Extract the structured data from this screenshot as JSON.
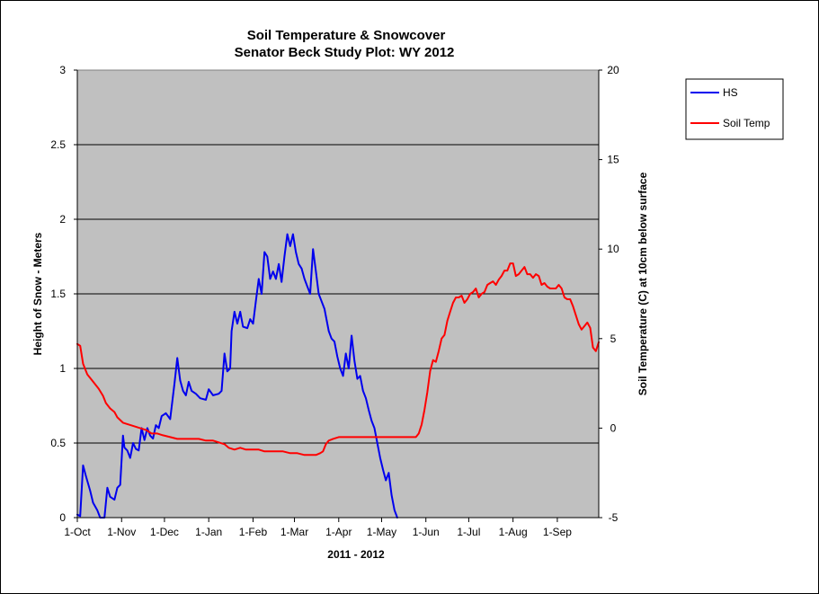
{
  "chart_data": {
    "type": "line",
    "title": "Soil Temperature & Snowcover",
    "subtitle": "Senator Beck Study Plot: WY 2012",
    "xlabel": "2011  -  2012",
    "ylabel": "Height of Snow - Meters",
    "y2label": "Soil Temperature (C) at 10cm below surface",
    "x_ticks": [
      "1-Oct",
      "1-Nov",
      "1-Dec",
      "1-Jan",
      "1-Feb",
      "1-Mar",
      "1-Apr",
      "1-May",
      "1-Jun",
      "1-Jul",
      "1-Aug",
      "1-Sep"
    ],
    "ylim": [
      0,
      3
    ],
    "y_ticks": [
      "0",
      "0.5",
      "1",
      "1.5",
      "2",
      "2.5",
      "3"
    ],
    "y2lim": [
      -5,
      20
    ],
    "y2_ticks": [
      "-5",
      "0",
      "5",
      "10",
      "15",
      "20"
    ],
    "grid": "horizontal",
    "plot_background": "#c0c0c0",
    "legend_position": "right",
    "x_start_date": "2011-10-01",
    "series": [
      {
        "name": "HS",
        "axis": "left",
        "color": "#0000ee",
        "points": [
          [
            "2011-10-01",
            0.02
          ],
          [
            "2011-10-03",
            0.01
          ],
          [
            "2011-10-05",
            0.35
          ],
          [
            "2011-10-07",
            0.28
          ],
          [
            "2011-10-10",
            0.18
          ],
          [
            "2011-10-12",
            0.1
          ],
          [
            "2011-10-15",
            0.05
          ],
          [
            "2011-10-17",
            0.0
          ],
          [
            "2011-10-20",
            0.0
          ],
          [
            "2011-10-22",
            0.2
          ],
          [
            "2011-10-24",
            0.14
          ],
          [
            "2011-10-27",
            0.12
          ],
          [
            "2011-10-29",
            0.2
          ],
          [
            "2011-10-31",
            0.22
          ],
          [
            "2011-11-02",
            0.55
          ],
          [
            "2011-11-03",
            0.47
          ],
          [
            "2011-11-05",
            0.45
          ],
          [
            "2011-11-07",
            0.4
          ],
          [
            "2011-11-09",
            0.5
          ],
          [
            "2011-11-11",
            0.46
          ],
          [
            "2011-11-13",
            0.45
          ],
          [
            "2011-11-15",
            0.6
          ],
          [
            "2011-11-17",
            0.52
          ],
          [
            "2011-11-19",
            0.6
          ],
          [
            "2011-11-21",
            0.55
          ],
          [
            "2011-11-23",
            0.53
          ],
          [
            "2011-11-25",
            0.62
          ],
          [
            "2011-11-27",
            0.6
          ],
          [
            "2011-11-29",
            0.68
          ],
          [
            "2011-12-02",
            0.7
          ],
          [
            "2011-12-05",
            0.66
          ],
          [
            "2011-12-08",
            0.9
          ],
          [
            "2011-12-10",
            1.07
          ],
          [
            "2011-12-12",
            0.92
          ],
          [
            "2011-12-14",
            0.85
          ],
          [
            "2011-12-16",
            0.82
          ],
          [
            "2011-12-18",
            0.91
          ],
          [
            "2011-12-20",
            0.85
          ],
          [
            "2011-12-23",
            0.83
          ],
          [
            "2011-12-26",
            0.8
          ],
          [
            "2011-12-30",
            0.79
          ],
          [
            "2012-01-01",
            0.86
          ],
          [
            "2012-01-04",
            0.82
          ],
          [
            "2012-01-08",
            0.83
          ],
          [
            "2012-01-10",
            0.85
          ],
          [
            "2012-01-12",
            1.1
          ],
          [
            "2012-01-14",
            0.98
          ],
          [
            "2012-01-16",
            1.0
          ],
          [
            "2012-01-17",
            1.25
          ],
          [
            "2012-01-19",
            1.38
          ],
          [
            "2012-01-21",
            1.3
          ],
          [
            "2012-01-23",
            1.38
          ],
          [
            "2012-01-25",
            1.28
          ],
          [
            "2012-01-28",
            1.27
          ],
          [
            "2012-01-30",
            1.33
          ],
          [
            "2012-02-01",
            1.3
          ],
          [
            "2012-02-03",
            1.45
          ],
          [
            "2012-02-05",
            1.6
          ],
          [
            "2012-02-07",
            1.5
          ],
          [
            "2012-02-09",
            1.78
          ],
          [
            "2012-02-11",
            1.75
          ],
          [
            "2012-02-13",
            1.6
          ],
          [
            "2012-02-15",
            1.65
          ],
          [
            "2012-02-17",
            1.6
          ],
          [
            "2012-02-19",
            1.7
          ],
          [
            "2012-02-21",
            1.58
          ],
          [
            "2012-02-23",
            1.75
          ],
          [
            "2012-02-25",
            1.9
          ],
          [
            "2012-02-27",
            1.82
          ],
          [
            "2012-02-29",
            1.9
          ],
          [
            "2012-03-02",
            1.78
          ],
          [
            "2012-03-04",
            1.7
          ],
          [
            "2012-03-06",
            1.67
          ],
          [
            "2012-03-08",
            1.6
          ],
          [
            "2012-03-10",
            1.55
          ],
          [
            "2012-03-12",
            1.5
          ],
          [
            "2012-03-14",
            1.8
          ],
          [
            "2012-03-16",
            1.65
          ],
          [
            "2012-03-18",
            1.5
          ],
          [
            "2012-03-20",
            1.45
          ],
          [
            "2012-03-22",
            1.4
          ],
          [
            "2012-03-25",
            1.25
          ],
          [
            "2012-03-27",
            1.2
          ],
          [
            "2012-03-29",
            1.18
          ],
          [
            "2012-03-31",
            1.08
          ],
          [
            "2012-04-02",
            1.0
          ],
          [
            "2012-04-04",
            0.95
          ],
          [
            "2012-04-06",
            1.1
          ],
          [
            "2012-04-08",
            1.0
          ],
          [
            "2012-04-10",
            1.22
          ],
          [
            "2012-04-12",
            1.05
          ],
          [
            "2012-04-14",
            0.93
          ],
          [
            "2012-04-16",
            0.95
          ],
          [
            "2012-04-18",
            0.85
          ],
          [
            "2012-04-20",
            0.8
          ],
          [
            "2012-04-22",
            0.72
          ],
          [
            "2012-04-24",
            0.65
          ],
          [
            "2012-04-26",
            0.6
          ],
          [
            "2012-04-28",
            0.5
          ],
          [
            "2012-04-30",
            0.4
          ],
          [
            "2012-05-02",
            0.32
          ],
          [
            "2012-05-04",
            0.25
          ],
          [
            "2012-05-06",
            0.3
          ],
          [
            "2012-05-08",
            0.15
          ],
          [
            "2012-05-10",
            0.05
          ],
          [
            "2012-05-12",
            0.0
          ]
        ]
      },
      {
        "name": "Soil Temp",
        "axis": "right",
        "color": "#ff0000",
        "points": [
          [
            "2011-10-01",
            4.7
          ],
          [
            "2011-10-03",
            4.6
          ],
          [
            "2011-10-05",
            3.6
          ],
          [
            "2011-10-08",
            3.0
          ],
          [
            "2011-10-12",
            2.6
          ],
          [
            "2011-10-16",
            2.2
          ],
          [
            "2011-10-19",
            1.8
          ],
          [
            "2011-10-21",
            1.4
          ],
          [
            "2011-10-24",
            1.1
          ],
          [
            "2011-10-27",
            0.9
          ],
          [
            "2011-10-29",
            0.6
          ],
          [
            "2011-11-02",
            0.3
          ],
          [
            "2011-11-06",
            0.2
          ],
          [
            "2011-11-10",
            0.1
          ],
          [
            "2011-11-14",
            0.0
          ],
          [
            "2011-11-18",
            -0.1
          ],
          [
            "2011-11-22",
            -0.3
          ],
          [
            "2011-11-26",
            -0.3
          ],
          [
            "2011-11-30",
            -0.4
          ],
          [
            "2011-12-05",
            -0.5
          ],
          [
            "2011-12-10",
            -0.6
          ],
          [
            "2011-12-15",
            -0.6
          ],
          [
            "2011-12-20",
            -0.6
          ],
          [
            "2011-12-25",
            -0.6
          ],
          [
            "2011-12-30",
            -0.7
          ],
          [
            "2012-01-04",
            -0.7
          ],
          [
            "2012-01-08",
            -0.8
          ],
          [
            "2012-01-12",
            -0.9
          ],
          [
            "2012-01-15",
            -1.1
          ],
          [
            "2012-01-19",
            -1.2
          ],
          [
            "2012-01-23",
            -1.1
          ],
          [
            "2012-01-27",
            -1.2
          ],
          [
            "2012-01-31",
            -1.2
          ],
          [
            "2012-02-05",
            -1.2
          ],
          [
            "2012-02-09",
            -1.3
          ],
          [
            "2012-02-14",
            -1.3
          ],
          [
            "2012-02-18",
            -1.3
          ],
          [
            "2012-02-22",
            -1.3
          ],
          [
            "2012-02-27",
            -1.4
          ],
          [
            "2012-03-03",
            -1.4
          ],
          [
            "2012-03-08",
            -1.5
          ],
          [
            "2012-03-12",
            -1.5
          ],
          [
            "2012-03-16",
            -1.5
          ],
          [
            "2012-03-19",
            -1.4
          ],
          [
            "2012-03-21",
            -1.3
          ],
          [
            "2012-03-23",
            -0.9
          ],
          [
            "2012-03-25",
            -0.7
          ],
          [
            "2012-03-28",
            -0.6
          ],
          [
            "2012-04-01",
            -0.5
          ],
          [
            "2012-04-08",
            -0.5
          ],
          [
            "2012-04-15",
            -0.5
          ],
          [
            "2012-04-22",
            -0.5
          ],
          [
            "2012-04-29",
            -0.5
          ],
          [
            "2012-05-06",
            -0.5
          ],
          [
            "2012-05-13",
            -0.5
          ],
          [
            "2012-05-20",
            -0.5
          ],
          [
            "2012-05-25",
            -0.5
          ],
          [
            "2012-05-27",
            -0.3
          ],
          [
            "2012-05-29",
            0.2
          ],
          [
            "2012-05-31",
            1.0
          ],
          [
            "2012-06-02",
            2.0
          ],
          [
            "2012-06-04",
            3.2
          ],
          [
            "2012-06-06",
            3.8
          ],
          [
            "2012-06-08",
            3.7
          ],
          [
            "2012-06-10",
            4.3
          ],
          [
            "2012-06-12",
            5.0
          ],
          [
            "2012-06-14",
            5.2
          ],
          [
            "2012-06-16",
            6.0
          ],
          [
            "2012-06-18",
            6.5
          ],
          [
            "2012-06-20",
            7.0
          ],
          [
            "2012-06-22",
            7.3
          ],
          [
            "2012-06-24",
            7.3
          ],
          [
            "2012-06-26",
            7.4
          ],
          [
            "2012-06-28",
            7.0
          ],
          [
            "2012-06-30",
            7.2
          ],
          [
            "2012-07-02",
            7.5
          ],
          [
            "2012-07-04",
            7.6
          ],
          [
            "2012-07-06",
            7.8
          ],
          [
            "2012-07-08",
            7.3
          ],
          [
            "2012-07-10",
            7.5
          ],
          [
            "2012-07-12",
            7.6
          ],
          [
            "2012-07-14",
            8.0
          ],
          [
            "2012-07-16",
            8.1
          ],
          [
            "2012-07-18",
            8.2
          ],
          [
            "2012-07-20",
            8.0
          ],
          [
            "2012-07-22",
            8.3
          ],
          [
            "2012-07-24",
            8.5
          ],
          [
            "2012-07-26",
            8.8
          ],
          [
            "2012-07-28",
            8.8
          ],
          [
            "2012-07-30",
            9.2
          ],
          [
            "2012-08-01",
            9.2
          ],
          [
            "2012-08-03",
            8.5
          ],
          [
            "2012-08-05",
            8.6
          ],
          [
            "2012-08-07",
            8.8
          ],
          [
            "2012-08-09",
            9.0
          ],
          [
            "2012-08-11",
            8.6
          ],
          [
            "2012-08-13",
            8.6
          ],
          [
            "2012-08-15",
            8.4
          ],
          [
            "2012-08-17",
            8.6
          ],
          [
            "2012-08-19",
            8.5
          ],
          [
            "2012-08-21",
            8.0
          ],
          [
            "2012-08-23",
            8.1
          ],
          [
            "2012-08-25",
            7.9
          ],
          [
            "2012-08-27",
            7.8
          ],
          [
            "2012-08-29",
            7.8
          ],
          [
            "2012-08-31",
            7.8
          ],
          [
            "2012-09-02",
            8.0
          ],
          [
            "2012-09-04",
            7.8
          ],
          [
            "2012-09-06",
            7.3
          ],
          [
            "2012-09-08",
            7.2
          ],
          [
            "2012-09-10",
            7.2
          ],
          [
            "2012-09-12",
            6.8
          ],
          [
            "2012-09-14",
            6.3
          ],
          [
            "2012-09-16",
            5.8
          ],
          [
            "2012-09-18",
            5.5
          ],
          [
            "2012-09-20",
            5.7
          ],
          [
            "2012-09-22",
            5.9
          ],
          [
            "2012-09-24",
            5.6
          ],
          [
            "2012-09-26",
            4.5
          ],
          [
            "2012-09-28",
            4.3
          ],
          [
            "2012-09-30",
            4.8
          ]
        ]
      }
    ]
  }
}
